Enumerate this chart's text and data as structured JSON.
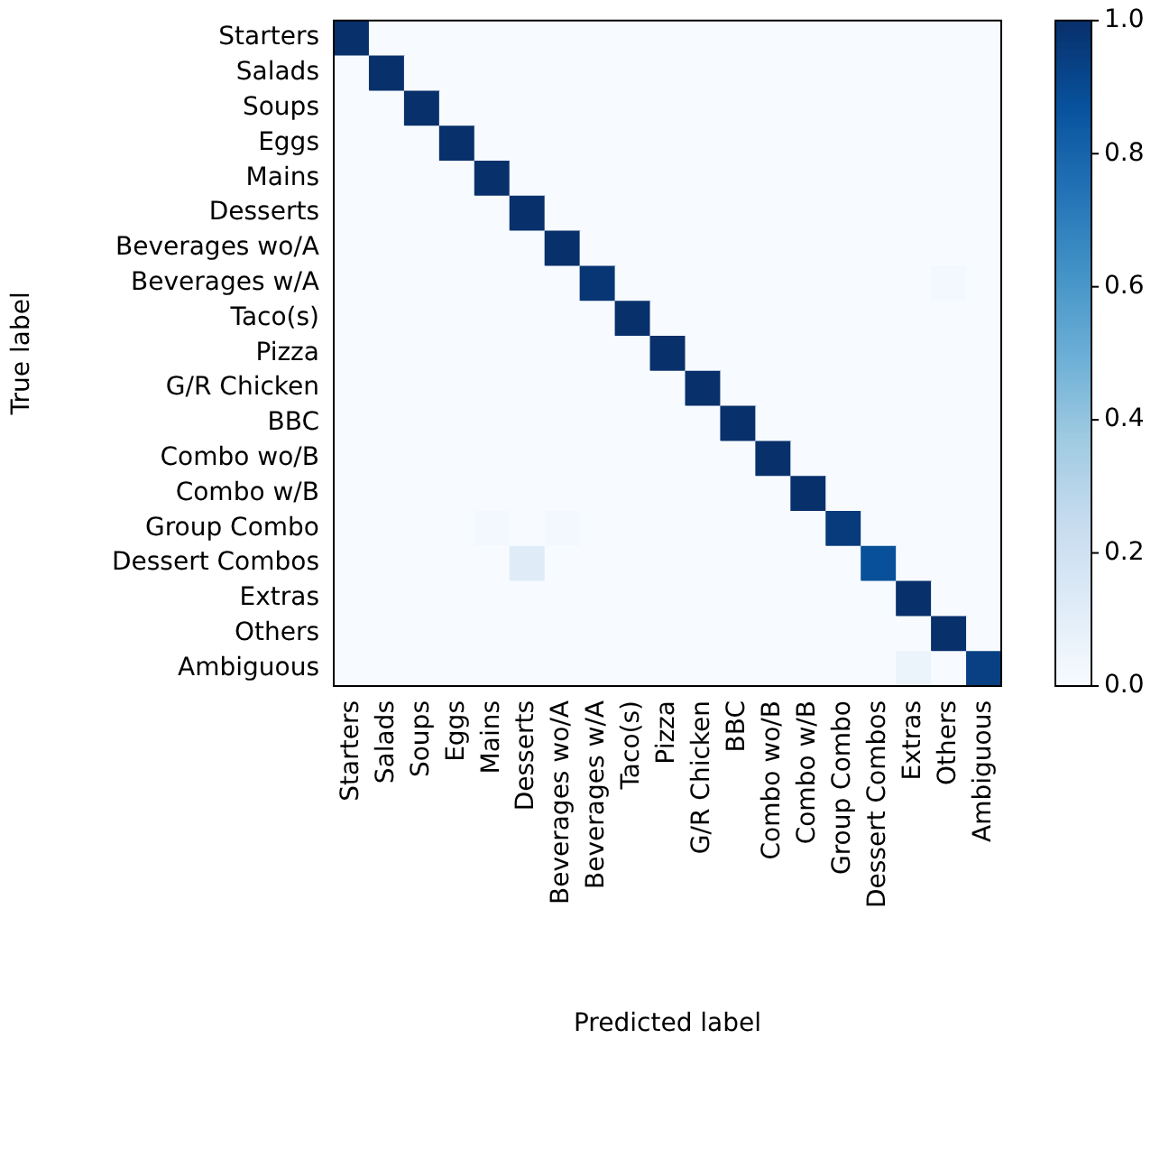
{
  "chart_data": {
    "type": "heatmap",
    "xlabel": "Predicted label",
    "ylabel": "True label",
    "categories": [
      "Starters",
      "Salads",
      "Soups",
      "Eggs",
      "Mains",
      "Desserts",
      "Beverages wo/A",
      "Beverages w/A",
      "Taco(s)",
      "Pizza",
      "G/R Chicken",
      "BBC",
      "Combo wo/B",
      "Combo w/B",
      "Group Combo",
      "Dessert Combos",
      "Extras",
      "Others",
      "Ambiguous"
    ],
    "y_categories": [
      "Starters",
      "Salads",
      "Soups",
      "Eggs",
      "Mains",
      "Desserts",
      "Beverages wo/A",
      "Beverages w/A",
      "Taco(s)",
      "Pizza",
      "G/R Chicken",
      "BBC",
      "Combo wo/B",
      "Combo w/B",
      "Group Combo",
      "Dessert Combos",
      "Extras",
      "Others",
      "Ambiguous"
    ],
    "cells": [
      [
        1,
        0,
        0,
        0,
        0,
        0,
        0,
        0,
        0,
        0,
        0,
        0,
        0,
        0,
        0,
        0,
        0,
        0,
        0
      ],
      [
        0,
        1,
        0,
        0,
        0,
        0,
        0,
        0,
        0,
        0,
        0,
        0,
        0,
        0,
        0,
        0,
        0,
        0,
        0
      ],
      [
        0,
        0,
        1,
        0,
        0,
        0,
        0,
        0,
        0,
        0,
        0,
        0,
        0,
        0,
        0,
        0,
        0,
        0,
        0
      ],
      [
        0,
        0,
        0,
        1,
        0,
        0,
        0,
        0,
        0,
        0,
        0,
        0,
        0,
        0,
        0,
        0,
        0,
        0,
        0
      ],
      [
        0,
        0,
        0,
        0,
        1,
        0,
        0,
        0,
        0,
        0,
        0,
        0,
        0,
        0,
        0,
        0,
        0,
        0,
        0
      ],
      [
        0,
        0,
        0,
        0,
        0,
        1,
        0,
        0,
        0,
        0,
        0,
        0,
        0,
        0,
        0,
        0,
        0,
        0,
        0
      ],
      [
        0,
        0,
        0,
        0,
        0,
        0,
        1,
        0,
        0,
        0,
        0,
        0,
        0,
        0,
        0,
        0,
        0,
        0,
        0
      ],
      [
        0,
        0,
        0,
        0,
        0,
        0,
        0,
        0.98,
        0,
        0,
        0,
        0,
        0,
        0,
        0,
        0,
        0,
        0.02,
        0
      ],
      [
        0,
        0,
        0,
        0,
        0,
        0,
        0,
        0,
        1,
        0,
        0,
        0,
        0,
        0,
        0,
        0,
        0,
        0,
        0
      ],
      [
        0,
        0,
        0,
        0,
        0,
        0,
        0,
        0,
        0,
        1,
        0,
        0,
        0,
        0,
        0,
        0,
        0,
        0,
        0
      ],
      [
        0,
        0,
        0,
        0,
        0,
        0,
        0,
        0,
        0,
        0,
        1,
        0,
        0,
        0,
        0,
        0,
        0,
        0,
        0
      ],
      [
        0,
        0,
        0,
        0,
        0,
        0,
        0,
        0,
        0,
        0,
        0,
        1,
        0,
        0,
        0,
        0,
        0,
        0,
        0
      ],
      [
        0,
        0,
        0,
        0,
        0,
        0,
        0,
        0,
        0,
        0,
        0,
        0,
        1,
        0,
        0,
        0,
        0,
        0,
        0
      ],
      [
        0,
        0,
        0,
        0,
        0,
        0,
        0,
        0,
        0,
        0,
        0,
        0,
        0,
        1,
        0,
        0,
        0,
        0,
        0
      ],
      [
        0,
        0,
        0,
        0,
        0.02,
        0,
        0.02,
        0,
        0,
        0,
        0,
        0,
        0,
        0,
        0.96,
        0,
        0,
        0,
        0
      ],
      [
        0,
        0,
        0,
        0,
        0,
        0.12,
        0,
        0,
        0,
        0,
        0,
        0,
        0,
        0,
        0,
        0.88,
        0,
        0,
        0
      ],
      [
        0,
        0,
        0,
        0,
        0,
        0,
        0,
        0,
        0,
        0,
        0,
        0,
        0,
        0,
        0,
        0,
        1,
        0,
        0
      ],
      [
        0,
        0,
        0,
        0,
        0,
        0,
        0,
        0,
        0,
        0,
        0,
        0,
        0,
        0,
        0,
        0,
        0,
        1,
        0
      ],
      [
        0,
        0,
        0,
        0,
        0,
        0,
        0,
        0,
        0,
        0,
        0,
        0,
        0,
        0,
        0,
        0,
        0.06,
        0,
        0.94
      ]
    ],
    "clim": [
      0,
      1
    ],
    "cticks": [
      {
        "value": 0,
        "label": "0.0"
      },
      {
        "value": 0.2,
        "label": "0.2"
      },
      {
        "value": 0.4,
        "label": "0.4"
      },
      {
        "value": 0.6,
        "label": "0.6"
      },
      {
        "value": 0.8,
        "label": "0.8"
      },
      {
        "value": 1,
        "label": "1.0"
      }
    ]
  }
}
